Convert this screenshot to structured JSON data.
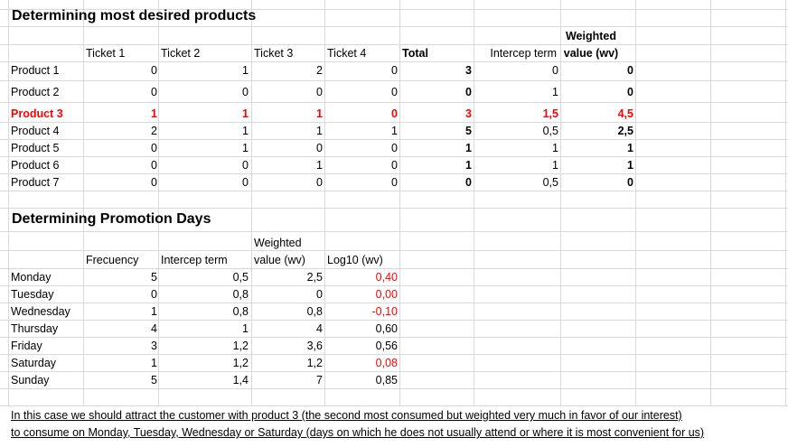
{
  "section1": {
    "title": "Determining most desired products",
    "headers": {
      "ticket1": "Ticket 1",
      "ticket2": "Ticket 2",
      "ticket3": "Ticket 3",
      "ticket4": "Ticket 4",
      "total": "Total",
      "intercept": "Intercep term",
      "weighted_line1": "Weighted",
      "weighted_line2": "value (wv)"
    },
    "rows": [
      {
        "product": "Product 1",
        "t1": "0",
        "t2": "1",
        "t3": "2",
        "t4": "0",
        "total": "3",
        "intercept": "0",
        "wv": "0"
      },
      {
        "product": "Product 2",
        "t1": "0",
        "t2": "0",
        "t3": "0",
        "t4": "0",
        "total": "0",
        "intercept": "1",
        "wv": "0"
      },
      {
        "product": "Product 3",
        "t1": "1",
        "t2": "1",
        "t3": "1",
        "t4": "0",
        "total": "3",
        "intercept": "1,5",
        "wv": "4,5"
      },
      {
        "product": "Product 4",
        "t1": "2",
        "t2": "1",
        "t3": "1",
        "t4": "1",
        "total": "5",
        "intercept": "0,5",
        "wv": "2,5"
      },
      {
        "product": "Product 5",
        "t1": "0",
        "t2": "1",
        "t3": "0",
        "t4": "0",
        "total": "1",
        "intercept": "1",
        "wv": "1"
      },
      {
        "product": "Product 6",
        "t1": "0",
        "t2": "0",
        "t3": "1",
        "t4": "0",
        "total": "1",
        "intercept": "1",
        "wv": "1"
      },
      {
        "product": "Product 7",
        "t1": "0",
        "t2": "0",
        "t3": "0",
        "t4": "0",
        "total": "0",
        "intercept": "0,5",
        "wv": "0"
      }
    ]
  },
  "section2": {
    "title": "Determining Promotion Days",
    "headers": {
      "frequency": "Frecuency",
      "intercept": "Intercep term",
      "weighted_line1": "Weighted",
      "weighted_line2": "value (wv)",
      "log": "Log10 (wv)"
    },
    "rows": [
      {
        "day": "Monday",
        "freq": "5",
        "intercept": "0,5",
        "wv": "2,5",
        "log": "0,40",
        "log_red": true
      },
      {
        "day": "Tuesday",
        "freq": "0",
        "intercept": "0,8",
        "wv": "0",
        "log": "0,00",
        "log_red": true
      },
      {
        "day": "Wednesday",
        "freq": "1",
        "intercept": "0,8",
        "wv": "0,8",
        "log": "-0,10",
        "log_red": true
      },
      {
        "day": "Thursday",
        "freq": "4",
        "intercept": "1",
        "wv": "4",
        "log": "0,60",
        "log_red": false
      },
      {
        "day": "Friday",
        "freq": "3",
        "intercept": "1,2",
        "wv": "3,6",
        "log": "0,56",
        "log_red": false
      },
      {
        "day": "Saturday",
        "freq": "1",
        "intercept": "1,2",
        "wv": "1,2",
        "log": "0,08",
        "log_red": true
      },
      {
        "day": "Sunday",
        "freq": "5",
        "intercept": "1,4",
        "wv": "7",
        "log": "0,85",
        "log_red": false
      }
    ]
  },
  "note": {
    "line1": "In this case we should attract the customer with product 3 (the second most consumed but weighted very much in favor of our interest)",
    "line2": "to consume on Monday, Tuesday, Wednesday or Saturday (days on which he does not usually attend or where it is most convenient for us)"
  },
  "colors": {
    "highlight": "#ff0000",
    "gridline": "#d9d9d9"
  }
}
